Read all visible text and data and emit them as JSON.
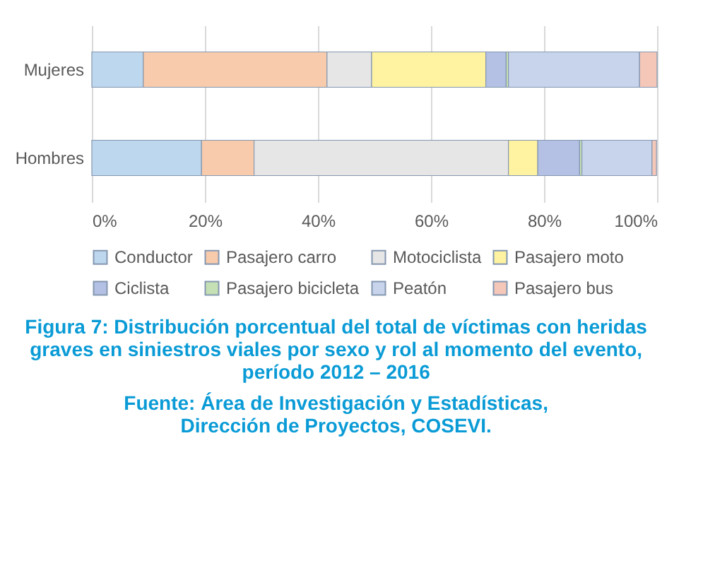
{
  "chart_data": {
    "type": "bar",
    "orientation": "horizontal",
    "stacked": true,
    "title": "Figura 7: Distribución porcentual del total de víctimas con heridas graves en siniestros viales por sexo y rol al momento del evento, período 2012 – 2016",
    "annotations": [
      "Fuente: Área de Investigación y Estadísticas, Dirección de Proyectos, COSEVI."
    ],
    "categories": [
      "Mujeres",
      "Hombres"
    ],
    "series": [
      {
        "name": "Conductor",
        "color": "#bdd7ee",
        "values": [
          9.1,
          19.4
        ]
      },
      {
        "name": "Pasajero carro",
        "color": "#f8cbad",
        "values": [
          32.5,
          9.3
        ]
      },
      {
        "name": "Motociclista",
        "color": "#e7e6e6",
        "values": [
          7.9,
          45.0
        ]
      },
      {
        "name": "Pasajero moto",
        "color": "#fff2a0",
        "values": [
          20.2,
          5.2
        ]
      },
      {
        "name": "Ciclista",
        "color": "#b4c0e4",
        "values": [
          3.6,
          7.4
        ]
      },
      {
        "name": "Pasajero bicicleta",
        "color": "#c5e0b4",
        "values": [
          0.4,
          0.4
        ]
      },
      {
        "name": "Peatón",
        "color": "#c8d4ec",
        "values": [
          23.2,
          12.4
        ]
      },
      {
        "name": "Pasajero bus",
        "color": "#f4c7b8",
        "values": [
          3.1,
          0.8
        ]
      }
    ],
    "xlim": [
      0,
      100
    ],
    "xticks": [
      {
        "value": 0,
        "label": "0%"
      },
      {
        "value": 20,
        "label": "20%"
      },
      {
        "value": 40,
        "label": "40%"
      },
      {
        "value": 60,
        "label": "60%"
      },
      {
        "value": 80,
        "label": "80%"
      },
      {
        "value": 100,
        "label": "100%"
      }
    ],
    "grid": "x",
    "legend": "bottom"
  }
}
